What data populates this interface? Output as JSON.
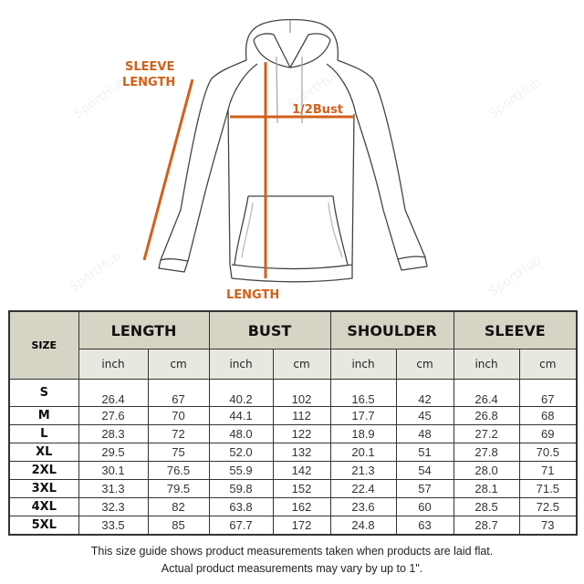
{
  "diagram": {
    "labels": {
      "sleeve_length_line1": "SLEEVE",
      "sleeve_length_line2": "LENGTH",
      "half_bust": "1/2Bust",
      "length": "LENGTH"
    },
    "accent_color": "#d2601a",
    "watermark": "SportHub Store!"
  },
  "table": {
    "size_header": "SIZE",
    "groups": [
      "LENGTH",
      "BUST",
      "SHOULDER",
      "SLEEVE"
    ],
    "units": [
      "inch",
      "cm"
    ],
    "rows": [
      {
        "size": "S",
        "values": [
          "26.4",
          "67",
          "40.2",
          "102",
          "16.5",
          "42",
          "26.4",
          "67"
        ]
      },
      {
        "size": "M",
        "values": [
          "27.6",
          "70",
          "44.1",
          "112",
          "17.7",
          "45",
          "26.8",
          "68"
        ]
      },
      {
        "size": "L",
        "values": [
          "28.3",
          "72",
          "48.0",
          "122",
          "18.9",
          "48",
          "27.2",
          "69"
        ]
      },
      {
        "size": "XL",
        "values": [
          "29.5",
          "75",
          "52.0",
          "132",
          "20.1",
          "51",
          "27.8",
          "70.5"
        ]
      },
      {
        "size": "2XL",
        "values": [
          "30.1",
          "76.5",
          "55.9",
          "142",
          "21.3",
          "54",
          "28.0",
          "71"
        ]
      },
      {
        "size": "3XL",
        "values": [
          "31.3",
          "79.5",
          "59.8",
          "152",
          "22.4",
          "57",
          "28.1",
          "71.5"
        ]
      },
      {
        "size": "4XL",
        "values": [
          "32.3",
          "82",
          "63.8",
          "162",
          "23.6",
          "60",
          "28.5",
          "72.5"
        ]
      },
      {
        "size": "5XL",
        "values": [
          "33.5",
          "85",
          "67.7",
          "172",
          "24.8",
          "63",
          "28.7",
          "73"
        ]
      }
    ],
    "header_color": "#d6d4c5"
  },
  "footer": {
    "line1": "This size guide shows product measurements taken when products are laid flat.",
    "line2": "Actual product measurements may vary by up to 1\"."
  }
}
